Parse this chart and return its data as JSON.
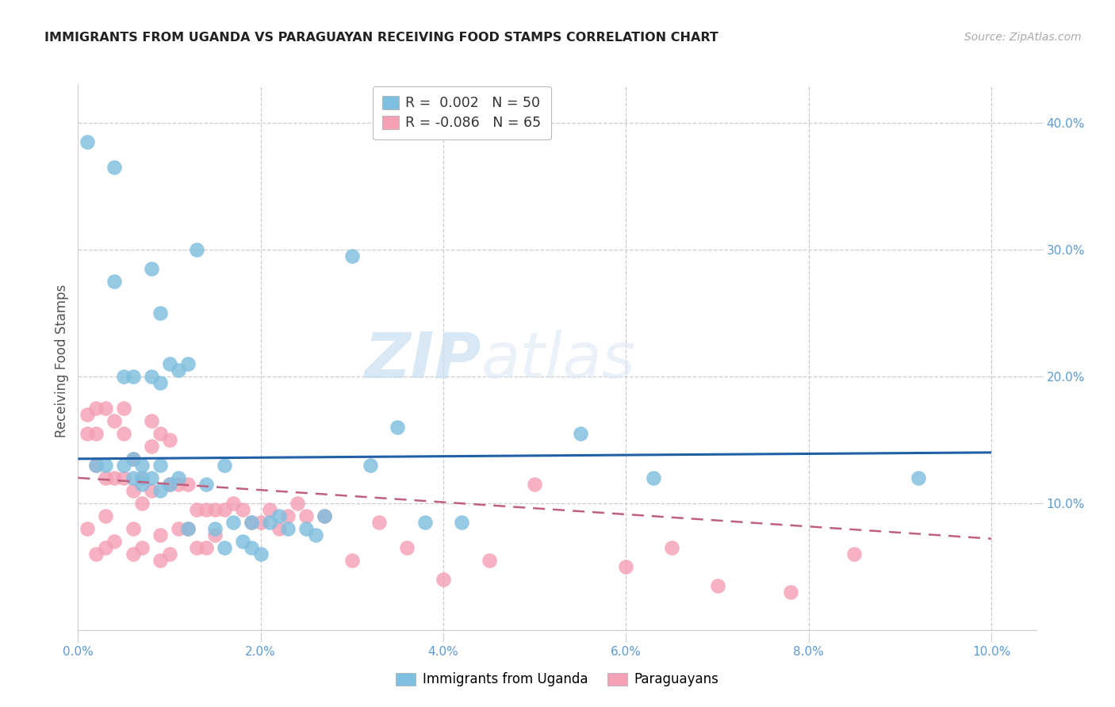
{
  "title": "IMMIGRANTS FROM UGANDA VS PARAGUAYAN RECEIVING FOOD STAMPS CORRELATION CHART",
  "source": "Source: ZipAtlas.com",
  "ylabel": "Receiving Food Stamps",
  "blue_color": "#7fbfdf",
  "pink_color": "#f4a0b5",
  "blue_line_color": "#2060a8",
  "pink_line_color": "#c06080",
  "watermark_text": "ZIPatlas",
  "watermark_color": "#cce0f0",
  "grid_color": "#cccccc",
  "bg_color": "#ffffff",
  "legend_blue_r": "0.002",
  "legend_blue_n": "50",
  "legend_pink_r": "-0.086",
  "legend_pink_n": "65",
  "legend_r_color": "#5b9bd5",
  "legend_text_color": "#333333",
  "title_color": "#222222",
  "source_color": "#aaaaaa",
  "ylabel_color": "#555555",
  "xtick_color": "#5b9bd5",
  "ytick_color": "#5b9bd5",
  "xlim": [
    0.0,
    0.105
  ],
  "ylim": [
    -0.005,
    0.43
  ],
  "x_tick_vals": [
    0.0,
    0.02,
    0.04,
    0.06,
    0.08,
    0.1
  ],
  "x_tick_labels": [
    "0.0%",
    "2.0%",
    "4.0%",
    "6.0%",
    "8.0%",
    "10.0%"
  ],
  "right_ytick_vals": [
    0.1,
    0.2,
    0.3,
    0.4
  ],
  "right_ytick_labels": [
    "10.0%",
    "20.0%",
    "30.0%",
    "40.0%"
  ],
  "blue_trend_y0": 0.135,
  "blue_trend_y1": 0.14,
  "pink_trend_y0": 0.12,
  "pink_trend_y1": 0.072,
  "uganda_x": [
    0.001,
    0.002,
    0.003,
    0.004,
    0.004,
    0.005,
    0.005,
    0.006,
    0.006,
    0.006,
    0.007,
    0.007,
    0.007,
    0.008,
    0.008,
    0.008,
    0.009,
    0.009,
    0.009,
    0.009,
    0.01,
    0.01,
    0.011,
    0.011,
    0.012,
    0.012,
    0.013,
    0.014,
    0.015,
    0.016,
    0.016,
    0.017,
    0.018,
    0.019,
    0.019,
    0.02,
    0.021,
    0.022,
    0.023,
    0.025,
    0.026,
    0.027,
    0.03,
    0.032,
    0.035,
    0.038,
    0.042,
    0.055,
    0.063,
    0.092
  ],
  "uganda_y": [
    0.385,
    0.13,
    0.13,
    0.275,
    0.365,
    0.13,
    0.2,
    0.135,
    0.2,
    0.12,
    0.13,
    0.12,
    0.115,
    0.285,
    0.2,
    0.12,
    0.25,
    0.195,
    0.13,
    0.11,
    0.21,
    0.115,
    0.205,
    0.12,
    0.21,
    0.08,
    0.3,
    0.115,
    0.08,
    0.065,
    0.13,
    0.085,
    0.07,
    0.085,
    0.065,
    0.06,
    0.085,
    0.09,
    0.08,
    0.08,
    0.075,
    0.09,
    0.295,
    0.13,
    0.16,
    0.085,
    0.085,
    0.155,
    0.12,
    0.12
  ],
  "paraguay_x": [
    0.001,
    0.001,
    0.001,
    0.002,
    0.002,
    0.002,
    0.002,
    0.003,
    0.003,
    0.003,
    0.003,
    0.004,
    0.004,
    0.004,
    0.005,
    0.005,
    0.005,
    0.006,
    0.006,
    0.006,
    0.006,
    0.007,
    0.007,
    0.007,
    0.008,
    0.008,
    0.008,
    0.009,
    0.009,
    0.009,
    0.01,
    0.01,
    0.01,
    0.011,
    0.011,
    0.012,
    0.012,
    0.013,
    0.013,
    0.014,
    0.014,
    0.015,
    0.015,
    0.016,
    0.017,
    0.018,
    0.019,
    0.02,
    0.021,
    0.022,
    0.023,
    0.024,
    0.025,
    0.027,
    0.03,
    0.033,
    0.036,
    0.04,
    0.045,
    0.05,
    0.06,
    0.065,
    0.07,
    0.078,
    0.085
  ],
  "paraguay_y": [
    0.17,
    0.155,
    0.08,
    0.175,
    0.155,
    0.13,
    0.06,
    0.175,
    0.12,
    0.09,
    0.065,
    0.165,
    0.12,
    0.07,
    0.175,
    0.155,
    0.12,
    0.135,
    0.11,
    0.08,
    0.06,
    0.12,
    0.1,
    0.065,
    0.165,
    0.145,
    0.11,
    0.155,
    0.075,
    0.055,
    0.15,
    0.115,
    0.06,
    0.115,
    0.08,
    0.115,
    0.08,
    0.095,
    0.065,
    0.095,
    0.065,
    0.095,
    0.075,
    0.095,
    0.1,
    0.095,
    0.085,
    0.085,
    0.095,
    0.08,
    0.09,
    0.1,
    0.09,
    0.09,
    0.055,
    0.085,
    0.065,
    0.04,
    0.055,
    0.115,
    0.05,
    0.065,
    0.035,
    0.03,
    0.06
  ]
}
